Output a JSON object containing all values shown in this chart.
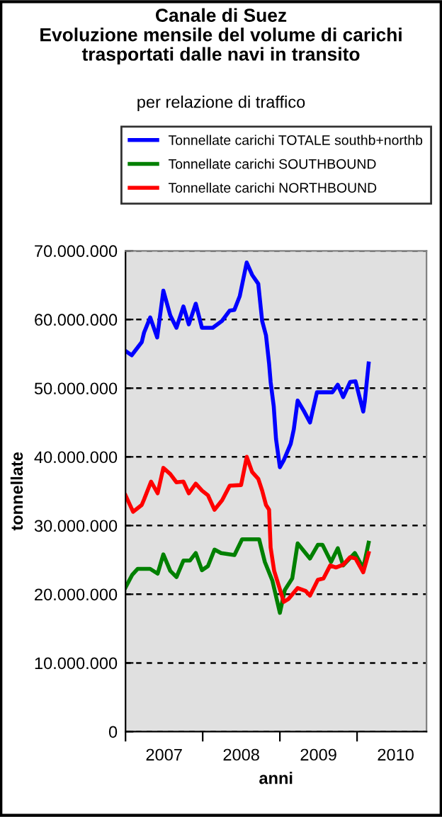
{
  "chart_data": {
    "type": "line",
    "title": "Canale di Suez\nEvoluzione mensile del volume di carichi\ntrasportati dalle navi in transito",
    "subtitle": "per relazione di traffico",
    "xlabel": "anni",
    "ylabel": "tonnellate",
    "xlim": [
      2007,
      2010.9
    ],
    "xticks": [
      {
        "value": 2007,
        "label": null
      },
      {
        "value": 2007.5,
        "label": "2007"
      },
      {
        "value": 2008,
        "label": null
      },
      {
        "value": 2008.5,
        "label": "2008"
      },
      {
        "value": 2009,
        "label": null
      },
      {
        "value": 2009.5,
        "label": "2009"
      },
      {
        "value": 2010,
        "label": null
      },
      {
        "value": 2010.5,
        "label": "2010"
      }
    ],
    "ylim": [
      0,
      70000000
    ],
    "yticks": [
      0,
      {
        "value": 10000000,
        "label": "10.000.000"
      },
      {
        "value": 20000000,
        "label": "20.000.000"
      },
      {
        "value": 30000000,
        "label": "30.000.000"
      },
      {
        "value": 40000000,
        "label": "40.000.000"
      },
      {
        "value": 50000000,
        "label": "50.000.000"
      },
      {
        "value": 60000000,
        "label": "60.000.000"
      },
      {
        "value": 70000000,
        "label": "70.000.000"
      }
    ],
    "grid": "y",
    "legend": "top",
    "marker": "none",
    "line_style": "solid",
    "series": [
      {
        "name": "Tonnellate carichi TOTALE southb+northb",
        "color": "#0000ff",
        "x": [
          2007.0,
          2007.08,
          2007.21,
          2007.24,
          2007.32,
          2007.41,
          2007.49,
          2007.58,
          2007.66,
          2007.75,
          2007.82,
          2007.91,
          2007.99,
          2008.13,
          2008.25,
          2008.35,
          2008.41,
          2008.48,
          2008.57,
          2008.64,
          2008.72,
          2008.77,
          2008.82,
          2008.86,
          2008.88,
          2008.92,
          2008.95,
          2009.0,
          2009.05,
          2009.14,
          2009.18,
          2009.23,
          2009.31,
          2009.39,
          2009.48,
          2009.68,
          2009.75,
          2009.82,
          2009.91,
          2009.98,
          2010.03,
          2010.08,
          2010.1,
          2010.15
        ],
        "values": [
          55400000,
          54800000,
          56700000,
          58100000,
          60300000,
          57400000,
          64200000,
          60600000,
          58800000,
          61900000,
          59300000,
          62300000,
          58800000,
          58800000,
          59800000,
          61300000,
          61400000,
          63400000,
          68300000,
          66500000,
          65200000,
          59800000,
          57700000,
          53600000,
          50900000,
          47400000,
          42600000,
          38500000,
          39500000,
          41900000,
          44000000,
          48200000,
          46700000,
          45000000,
          49400000,
          49400000,
          50500000,
          48700000,
          50900000,
          51000000,
          48800000,
          46600000,
          48100000,
          53600000
        ]
      },
      {
        "name": "Tonnellate carichi SOUTHBOUND",
        "color": "#008000",
        "x": [
          2007.0,
          2007.085,
          2007.158,
          2007.319,
          2007.416,
          2007.49,
          2007.58,
          2007.66,
          2007.75,
          2007.834,
          2007.91,
          2007.99,
          2008.068,
          2008.153,
          2008.239,
          2008.411,
          2008.51,
          2008.731,
          2008.805,
          2008.902,
          2009.0,
          2009.063,
          2009.16,
          2009.23,
          2009.39,
          2009.492,
          2009.552,
          2009.663,
          2009.75,
          2009.82,
          2009.971,
          2010.08,
          2010.15
        ],
        "values": [
          21000000,
          22800000,
          23700000,
          23700000,
          23000000,
          25800000,
          23400000,
          22500000,
          24900000,
          24900000,
          26000000,
          23500000,
          24100000,
          26500000,
          26000000,
          25700000,
          28000000,
          28000000,
          24700000,
          22000000,
          17300000,
          20600000,
          22300000,
          27400000,
          25200000,
          27200000,
          27200000,
          24700000,
          26700000,
          24200000,
          26000000,
          23800000,
          27500000
        ]
      },
      {
        "name": "Tonnellate carichi NORTHBOUND",
        "color": "#ff0000",
        "x": [
          2007.0,
          2007.098,
          2007.21,
          2007.24,
          2007.331,
          2007.416,
          2007.49,
          2007.58,
          2007.66,
          2007.75,
          2007.82,
          2007.91,
          2007.99,
          2008.068,
          2008.153,
          2008.252,
          2008.35,
          2008.497,
          2008.571,
          2008.64,
          2008.72,
          2008.77,
          2008.82,
          2008.86,
          2008.88,
          2008.926,
          2009.05,
          2009.11,
          2009.23,
          2009.331,
          2009.39,
          2009.492,
          2009.565,
          2009.652,
          2009.726,
          2009.82,
          2009.91,
          2009.98,
          2010.08,
          2010.15
        ],
        "values": [
          34400000,
          32000000,
          33000000,
          33800000,
          36400000,
          34700000,
          38400000,
          37500000,
          36300000,
          36400000,
          34700000,
          36100000,
          35100000,
          34400000,
          32300000,
          33700000,
          35800000,
          35900000,
          40000000,
          37800000,
          36800000,
          35100000,
          33000000,
          32300000,
          26800000,
          23400000,
          18900000,
          19300000,
          20900000,
          20500000,
          19800000,
          22100000,
          22300000,
          24200000,
          23900000,
          24300000,
          25400000,
          25200000,
          23200000,
          26000000
        ]
      }
    ]
  }
}
